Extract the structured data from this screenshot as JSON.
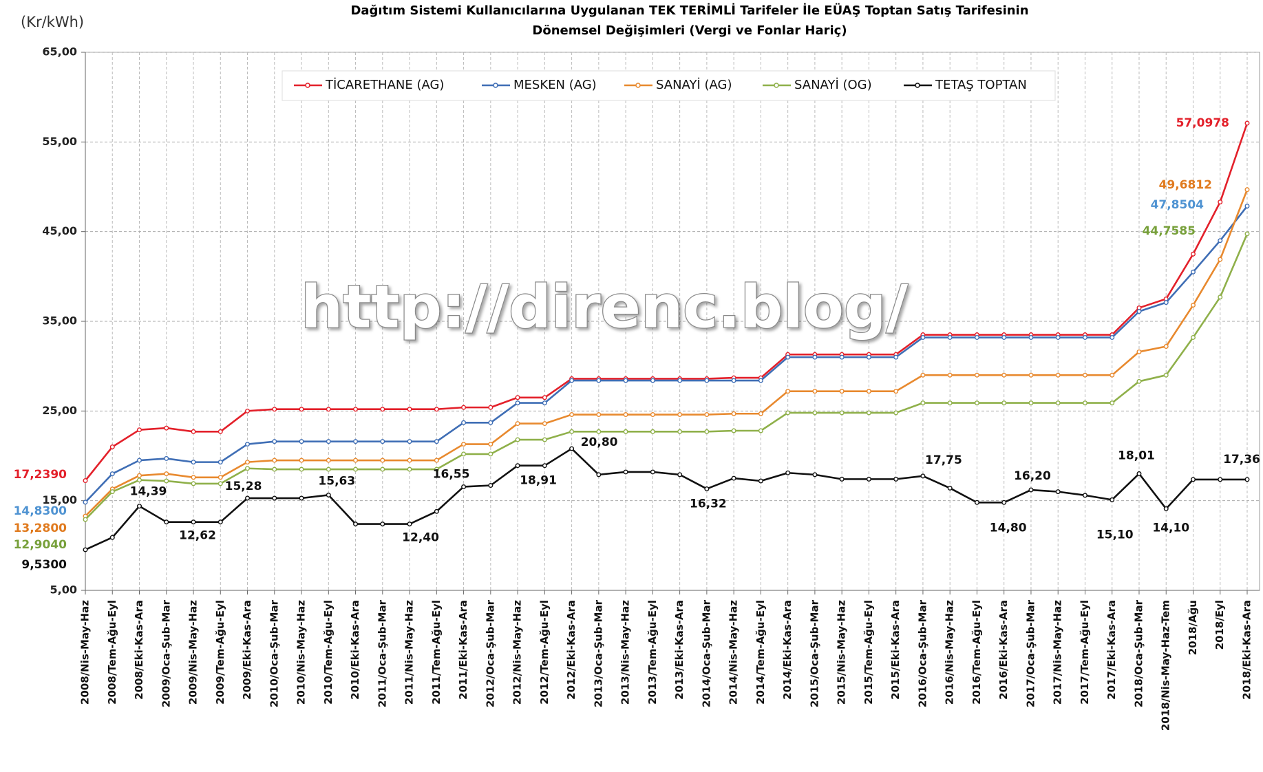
{
  "chart_data": {
    "type": "line",
    "title": [
      "Dağıtım Sistemi Kullanıcılarına Uygulanan TEK TERİMLİ Tarifeler İle EÜAŞ Toptan Satış Tarifesinin",
      "Dönemsel Değişimleri (Vergi ve Fonlar Hariç)"
    ],
    "y_label": "(Kr/kWh)",
    "watermark": "http://direnc.blog/",
    "categories": [
      "2008/Nis-May-Haz",
      "2008/Tem-Ağu-Eyl",
      "2008/Eki-Kas-Ara",
      "2009/Oca-Şub-Mar",
      "2009/Nis-May-Haz",
      "2009/Tem-Ağu-Eyl",
      "2009/Eki-Kas-Ara",
      "2010/Oca-Şub-Mar",
      "2010/Nis-May-Haz",
      "2010/Tem-Ağu-Eyl",
      "2010/Eki-Kas-Ara",
      "2011/Oca-Şub-Mar",
      "2011/Nis-May-Haz",
      "2011/Tem-Ağu-Eyl",
      "2011/Eki-Kas-Ara",
      "2012/Oca-Şub-Mar",
      "2012/Nis-May-Haz",
      "2012/Tem-Ağu-Eyl",
      "2012/Eki-Kas-Ara",
      "2013/Oca-Şub-Mar",
      "2013/Nis-May-Haz",
      "2013/Tem-Ağu-Eyl",
      "2013/Eki-Kas-Ara",
      "2014/Oca-Şub-Mar",
      "2014/Nis-May-Haz",
      "2014/Tem-Ağu-Eyl",
      "2014/Eki-Kas-Ara",
      "2015/Oca-Şub-Mar",
      "2015/Nis-May-Haz",
      "2015/Tem-Ağu-Eyl",
      "2015/Eki-Kas-Ara",
      "2016/Oca-Şub-Mar",
      "2016/Nis-May-Haz",
      "2016/Tem-Ağu-Eyl",
      "2016/Eki-Kas-Ara",
      "2017/Oca-Şub-Mar",
      "2017/Nis-May-Haz",
      "2017/Tem-Ağu-Eyl",
      "2017/Eki-Kas-Ara",
      "2018/Oca-Şub-Mar",
      "2018/Nis-May-Haz-Tem",
      "2018/Ağu",
      "2018/Eyl",
      "2018/Eki-Kas-Ara"
    ],
    "series": [
      {
        "name": "TİCARETHANE (AG)",
        "color": "#e3202a",
        "label_color": "#e3202a",
        "values": [
          17.239,
          21.0,
          22.9,
          23.1,
          22.7,
          22.7,
          25.0,
          25.2,
          25.2,
          25.2,
          25.2,
          25.2,
          25.2,
          25.2,
          25.4,
          25.4,
          26.5,
          26.5,
          28.6,
          28.6,
          28.6,
          28.6,
          28.6,
          28.6,
          28.7,
          28.7,
          31.3,
          31.3,
          31.3,
          31.3,
          31.3,
          33.5,
          33.5,
          33.5,
          33.5,
          33.5,
          33.5,
          33.5,
          33.5,
          36.5,
          37.5,
          42.5,
          48.3,
          57.0978
        ],
        "value_labels": [
          "17,2390",
          null,
          null,
          null,
          null,
          null,
          null,
          null,
          null,
          null,
          null,
          null,
          null,
          null,
          null,
          null,
          null,
          null,
          null,
          null,
          null,
          null,
          null,
          null,
          null,
          null,
          null,
          null,
          null,
          null,
          null,
          null,
          null,
          null,
          null,
          null,
          null,
          null,
          null,
          null,
          null,
          null,
          null,
          "57,0978"
        ]
      },
      {
        "name": "MESKEN (AG)",
        "color": "#3f6eb5",
        "label_color": "#4f93d2",
        "values": [
          14.83,
          18.0,
          19.5,
          19.7,
          19.3,
          19.3,
          21.3,
          21.6,
          21.6,
          21.6,
          21.6,
          21.6,
          21.6,
          21.6,
          23.7,
          23.7,
          25.9,
          25.9,
          28.4,
          28.4,
          28.4,
          28.4,
          28.4,
          28.4,
          28.4,
          28.4,
          31.0,
          31.0,
          31.0,
          31.0,
          31.0,
          33.2,
          33.2,
          33.2,
          33.2,
          33.2,
          33.2,
          33.2,
          33.2,
          36.1,
          37.1,
          40.5,
          44.0,
          47.8504
        ],
        "value_labels": [
          "14,8300",
          null,
          null,
          null,
          null,
          null,
          null,
          null,
          null,
          null,
          null,
          null,
          null,
          null,
          null,
          null,
          null,
          null,
          null,
          null,
          null,
          null,
          null,
          null,
          null,
          null,
          null,
          null,
          null,
          null,
          null,
          null,
          null,
          null,
          null,
          null,
          null,
          null,
          null,
          null,
          null,
          null,
          null,
          "47,8504"
        ]
      },
      {
        "name": "SANAYİ (AG)",
        "color": "#e8892e",
        "label_color": "#e07a1e",
        "values": [
          13.28,
          16.3,
          17.8,
          18.0,
          17.6,
          17.6,
          19.3,
          19.5,
          19.5,
          19.5,
          19.5,
          19.5,
          19.5,
          19.5,
          21.3,
          21.3,
          23.6,
          23.6,
          24.6,
          24.6,
          24.6,
          24.6,
          24.6,
          24.6,
          24.7,
          24.7,
          27.2,
          27.2,
          27.2,
          27.2,
          27.2,
          29.0,
          29.0,
          29.0,
          29.0,
          29.0,
          29.0,
          29.0,
          29.0,
          31.6,
          32.2,
          36.8,
          41.9,
          49.6812
        ],
        "value_labels": [
          "13,2800",
          null,
          null,
          null,
          null,
          null,
          null,
          null,
          null,
          null,
          null,
          null,
          null,
          null,
          null,
          null,
          null,
          null,
          null,
          null,
          null,
          null,
          null,
          null,
          null,
          null,
          null,
          null,
          null,
          null,
          null,
          null,
          null,
          null,
          null,
          null,
          null,
          null,
          null,
          null,
          null,
          null,
          null,
          "49,6812"
        ]
      },
      {
        "name": "SANAYİ (OG)",
        "color": "#8fb04a",
        "label_color": "#77a03a",
        "values": [
          12.904,
          16.0,
          17.3,
          17.2,
          16.9,
          16.9,
          18.6,
          18.5,
          18.5,
          18.5,
          18.5,
          18.5,
          18.5,
          18.5,
          20.2,
          20.2,
          21.8,
          21.8,
          22.7,
          22.7,
          22.7,
          22.7,
          22.7,
          22.7,
          22.8,
          22.8,
          24.8,
          24.8,
          24.8,
          24.8,
          24.8,
          25.9,
          25.9,
          25.9,
          25.9,
          25.9,
          25.9,
          25.9,
          25.9,
          28.3,
          29.0,
          33.2,
          37.7,
          44.7585
        ],
        "value_labels": [
          "12,9040",
          null,
          null,
          null,
          null,
          null,
          null,
          null,
          null,
          null,
          null,
          null,
          null,
          null,
          null,
          null,
          null,
          null,
          null,
          null,
          null,
          null,
          null,
          null,
          null,
          null,
          null,
          null,
          null,
          null,
          null,
          null,
          null,
          null,
          null,
          null,
          null,
          null,
          null,
          null,
          null,
          null,
          null,
          "44,7585"
        ]
      },
      {
        "name": "TETAŞ TOPTAN",
        "color": "#111111",
        "label_color": "#111111",
        "values": [
          9.53,
          10.9,
          14.39,
          12.62,
          12.62,
          12.62,
          15.28,
          15.28,
          15.28,
          15.63,
          12.4,
          12.4,
          12.4,
          13.8,
          16.55,
          16.7,
          18.91,
          18.91,
          20.8,
          17.9,
          18.2,
          18.2,
          17.9,
          16.32,
          17.5,
          17.2,
          18.1,
          17.9,
          17.4,
          17.4,
          17.4,
          17.75,
          16.4,
          14.8,
          14.8,
          16.2,
          16.0,
          15.6,
          15.1,
          18.01,
          14.1,
          17.36,
          17.36,
          17.36
        ],
        "value_labels": [
          "9,5300",
          null,
          "14,39",
          null,
          "12,62",
          null,
          "15,28",
          null,
          null,
          "15,63",
          null,
          null,
          "12,40",
          null,
          "16,55",
          null,
          "18,91",
          null,
          "20,80",
          null,
          null,
          null,
          null,
          "16,32",
          null,
          null,
          null,
          null,
          null,
          null,
          null,
          "17,75",
          null,
          null,
          "14,80",
          "16,20",
          null,
          null,
          "15,10",
          "18,01",
          "14,10",
          null,
          null,
          "17,36"
        ]
      }
    ],
    "ylim": [
      5,
      65
    ],
    "yticks": [
      {
        "value": 5,
        "label": "5,00"
      },
      {
        "value": 15,
        "label": "15,00"
      },
      {
        "value": 25,
        "label": "25,00"
      },
      {
        "value": 35,
        "label": "35,00"
      },
      {
        "value": 45,
        "label": "45,00"
      },
      {
        "value": 55,
        "label": "55,00"
      },
      {
        "value": 65,
        "label": "65,00"
      }
    ],
    "grid": true,
    "legend": "top"
  }
}
